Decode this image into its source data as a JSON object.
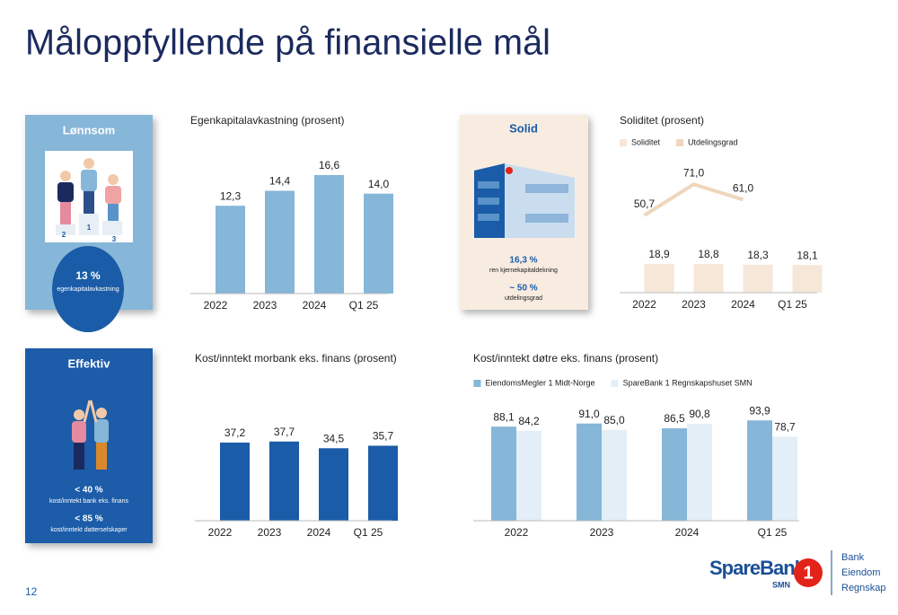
{
  "title": "Måloppfyllende på finansielle mål",
  "cards": [
    {
      "heading": "Lønnsom",
      "podium": [
        "2",
        "1",
        "3"
      ],
      "figures": [
        {
          "value": "13 %",
          "caption": "egenkapitalavkastning"
        }
      ]
    },
    {
      "heading": "Solid",
      "figures": [
        {
          "value": "16,3 %",
          "caption": "ren kjernekapitaldekning"
        },
        {
          "value": "~ 50 %",
          "caption": "utdelingsgrad"
        }
      ]
    },
    {
      "heading": "Effektiv",
      "figures": [
        {
          "value": "< 40 %",
          "caption": "kost/inntekt bank eks. finans"
        },
        {
          "value": "< 85 %",
          "caption": "kost/inntekt datterselskaper"
        }
      ]
    }
  ],
  "chart_data": [
    {
      "type": "bar",
      "title": "Egenkapitalavkastning (prosent)",
      "categories": [
        "2022",
        "2023",
        "2024",
        "Q1 25"
      ],
      "values": [
        12.3,
        14.4,
        16.6,
        14.0
      ],
      "value_labels": [
        "12,3",
        "14,4",
        "16,6",
        "14,0"
      ],
      "color": "#86b6d8",
      "ylim": [
        0,
        21
      ]
    },
    {
      "type": "combo",
      "title": "Soliditet (prosent)",
      "categories": [
        "2022",
        "2023",
        "2024",
        "Q1 25"
      ],
      "ylim": [
        0,
        100
      ],
      "legend": "top-left",
      "series": [
        {
          "name": "Soliditet",
          "type": "bar",
          "color": "#f6e7d9",
          "values": [
            18.9,
            18.8,
            18.3,
            18.1
          ],
          "value_labels": [
            "18,9",
            "18,8",
            "18,3",
            "18,1"
          ]
        },
        {
          "name": "Utdelingsgrad",
          "type": "line",
          "color": "#efd6bd",
          "values": [
            50.7,
            71.0,
            61.0,
            null
          ],
          "value_labels": [
            "50,7",
            "71,0",
            "61,0",
            null
          ]
        }
      ]
    },
    {
      "type": "bar",
      "title": "Kost/inntekt morbank eks. finans (prosent)",
      "categories": [
        "2022",
        "2023",
        "2024",
        "Q1 25"
      ],
      "values": [
        37.2,
        37.7,
        34.5,
        35.7
      ],
      "value_labels": [
        "37,2",
        "37,7",
        "34,5",
        "35,7"
      ],
      "color": "#1a5ca8",
      "ylim": [
        0,
        50
      ]
    },
    {
      "type": "bar",
      "title": "Kost/inntekt døtre eks. finans (prosent)",
      "categories": [
        "2022",
        "2023",
        "2024",
        "Q1 25"
      ],
      "ylim": [
        0,
        100
      ],
      "legend": "top-left",
      "series": [
        {
          "name": "EiendomsMegler 1 Midt-Norge",
          "color": "#86b6d8",
          "values": [
            88.1,
            91.0,
            86.5,
            93.9
          ],
          "value_labels": [
            "88,1",
            "91,0",
            "86,5",
            "93,9"
          ]
        },
        {
          "name": "SpareBank 1 Regnskapshuset SMN",
          "color": "#e3eef7",
          "values": [
            84.2,
            85.0,
            90.8,
            78.7
          ],
          "value_labels": [
            "84,2",
            "85,0",
            "90,8",
            "78,7"
          ]
        }
      ]
    }
  ],
  "page_number": "12",
  "logo": {
    "name": "SpareBank",
    "badge": "1",
    "sub": "SMN",
    "units": [
      "Bank",
      "Eiendom",
      "Regnskap"
    ]
  }
}
